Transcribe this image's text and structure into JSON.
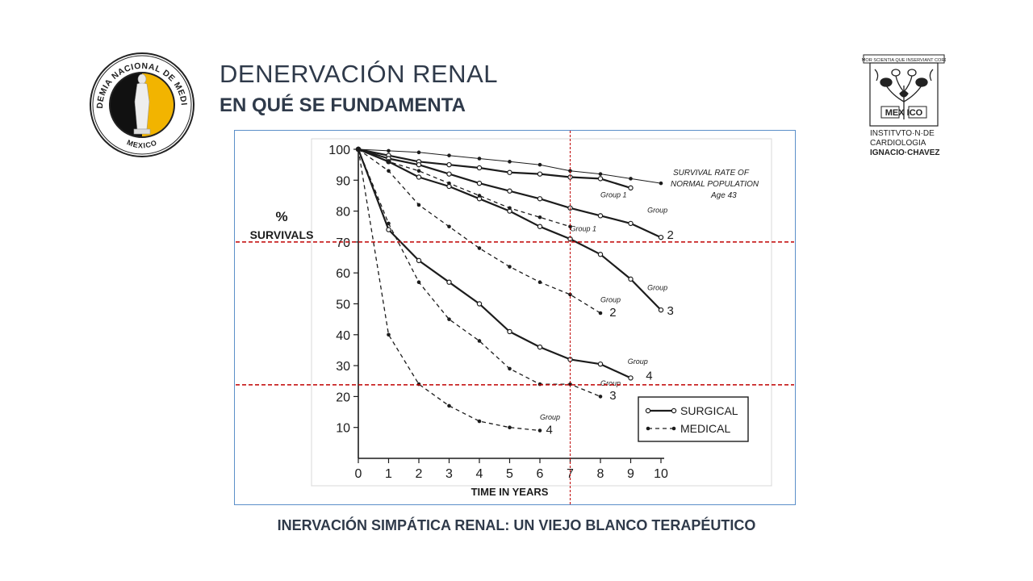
{
  "header": {
    "title": "DENERVACIÓN RENAL",
    "subtitle": "EN QUÉ SE FUNDAMENTA"
  },
  "logos": {
    "left": {
      "name": "academia-nacional-de-medicina-seal",
      "text": "ACADEMIA NACIONAL DE MEDICINA",
      "bottom_text": "MEXICO"
    },
    "right": {
      "name": "instituto-cardiologia-logo",
      "motto": "AMOR SCIENTIA QUE INSERVIANT CORDI",
      "emblem_text": "MEX ICO",
      "line1": "INSTITVTO·N·DE",
      "line2": "CARDIOLOGIA",
      "line3": "IGNACIO·CHAVEZ"
    }
  },
  "caption": "INERVACIÓN SIMPÁTICA RENAL: UN VIEJO BLANCO TERAPÉUTICO",
  "chart_data": {
    "type": "line",
    "ylabel_line1": "%",
    "ylabel_line2": "SURVIVALS",
    "xlabel": "TIME IN YEARS",
    "xlim": [
      0,
      10
    ],
    "ylim": [
      0,
      100
    ],
    "x_ticks": [
      "0",
      "1",
      "2",
      "3",
      "4",
      "5",
      "6",
      "7",
      "8",
      "9",
      "10"
    ],
    "y_ticks": [
      "10",
      "20",
      "30",
      "40",
      "50",
      "60",
      "70",
      "80",
      "90",
      "100"
    ],
    "legend": {
      "position": "bottom-right",
      "items": [
        {
          "label": "SURGICAL",
          "style": "solid-open-marker"
        },
        {
          "label": "MEDICAL",
          "style": "dashed-filled-marker"
        }
      ]
    },
    "series": [
      {
        "name": "SURVIVAL RATE OF NORMAL POPULATION Age 43",
        "style": "thin",
        "x": [
          0,
          1,
          2,
          3,
          4,
          5,
          6,
          7,
          8,
          9,
          10
        ],
        "y": [
          100,
          99.5,
          99,
          98,
          97,
          96,
          95,
          93,
          92,
          90.5,
          89
        ]
      },
      {
        "name": "Surgical Group 1",
        "style": "solid",
        "x": [
          0,
          1,
          2,
          3,
          4,
          5,
          6,
          7,
          8,
          9
        ],
        "y": [
          100,
          98,
          96,
          95,
          94,
          92.5,
          92,
          91,
          90.5,
          87.5
        ]
      },
      {
        "name": "Surgical Group 2",
        "style": "solid",
        "x": [
          0,
          1,
          2,
          3,
          4,
          5,
          6,
          7,
          8,
          9,
          10
        ],
        "y": [
          100,
          97,
          95,
          92,
          89,
          86.5,
          84,
          81,
          78.5,
          76,
          71.5
        ]
      },
      {
        "name": "Surgical Group 3",
        "style": "solid",
        "x": [
          0,
          1,
          2,
          3,
          4,
          5,
          6,
          7,
          8,
          9,
          10
        ],
        "y": [
          100,
          96,
          91,
          88,
          84,
          80,
          75,
          71,
          66,
          58,
          48
        ]
      },
      {
        "name": "Surgical Group 4",
        "style": "solid",
        "x": [
          0,
          1,
          2,
          3,
          4,
          5,
          6,
          7,
          8,
          9
        ],
        "y": [
          100,
          74,
          64,
          57,
          50,
          41,
          36,
          32,
          30.5,
          26
        ]
      },
      {
        "name": "Medical Group 1",
        "style": "dashed",
        "x": [
          0,
          1,
          2,
          3,
          4,
          5,
          6,
          7
        ],
        "y": [
          100,
          96,
          93,
          89,
          85,
          81,
          78,
          75
        ]
      },
      {
        "name": "Medical Group 2",
        "style": "dashed",
        "x": [
          0,
          1,
          2,
          3,
          4,
          5,
          6,
          7,
          8
        ],
        "y": [
          100,
          93,
          82,
          75,
          68,
          62,
          57,
          53,
          47
        ]
      },
      {
        "name": "Medical Group 3",
        "style": "dashed",
        "x": [
          0,
          1,
          2,
          3,
          4,
          5,
          6,
          7,
          8
        ],
        "y": [
          100,
          76,
          57,
          45,
          38,
          29,
          24,
          24,
          20
        ]
      },
      {
        "name": "Medical Group 4",
        "style": "dashed",
        "x": [
          0,
          1,
          2,
          3,
          4,
          5,
          6
        ],
        "y": [
          100,
          40,
          24,
          17,
          12,
          10,
          9
        ]
      }
    ],
    "group_labels": [
      {
        "text": "Group 1",
        "x": 8.0,
        "y": 84.5,
        "size": "small"
      },
      {
        "text": "Group",
        "x": 9.55,
        "y": 79.5,
        "size": "small"
      },
      {
        "text": "2",
        "x": 10.2,
        "y": 71,
        "size": "big"
      },
      {
        "text": "Group 1",
        "x": 7.0,
        "y": 73.5,
        "size": "small"
      },
      {
        "text": "Group",
        "x": 9.55,
        "y": 54.5,
        "size": "small"
      },
      {
        "text": "3",
        "x": 10.2,
        "y": 46.5,
        "size": "big"
      },
      {
        "text": "Group",
        "x": 8.0,
        "y": 50.5,
        "size": "small"
      },
      {
        "text": "2",
        "x": 8.3,
        "y": 46,
        "size": "big"
      },
      {
        "text": "Group",
        "x": 8.9,
        "y": 30.5,
        "size": "small"
      },
      {
        "text": "4",
        "x": 9.5,
        "y": 25.5,
        "size": "big"
      },
      {
        "text": "Group",
        "x": 8.0,
        "y": 23.5,
        "size": "small"
      },
      {
        "text": "3",
        "x": 8.3,
        "y": 19,
        "size": "big"
      },
      {
        "text": "Group",
        "x": 6.0,
        "y": 12.5,
        "size": "small"
      },
      {
        "text": "4",
        "x": 6.2,
        "y": 8,
        "size": "big"
      }
    ],
    "annotation": "SURVIVAL RATE OF NORMAL POPULATION Age 43",
    "annotation_lines": [
      "SURVIVAL RATE OF",
      "NORMAL POPULATION",
      "Age 43"
    ],
    "reference_lines": {
      "color": "#c00000",
      "horizontal_y": [
        70,
        23.8
      ],
      "vertical_x": [
        7
      ]
    },
    "grid": false
  }
}
